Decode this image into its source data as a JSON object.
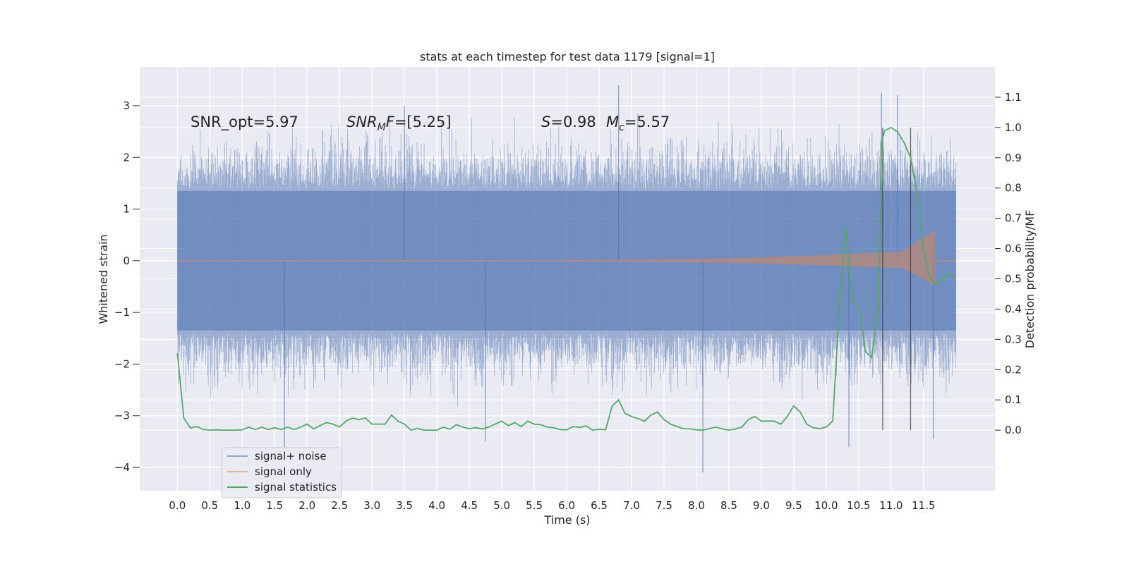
{
  "chart_data": {
    "type": "line",
    "title": "stats at each timestep for test data 1179 [signal=1]",
    "xlabel": "Time (s)",
    "ylabel_left": "Whitened strain",
    "ylabel_right": "Detection probability/MF",
    "x_ticks": [
      "0.0",
      "0.5",
      "1.0",
      "1.5",
      "2.0",
      "2.5",
      "3.0",
      "3.5",
      "4.0",
      "4.5",
      "5.0",
      "5.5",
      "6.0",
      "6.5",
      "7.0",
      "7.5",
      "8.0",
      "8.5",
      "9.0",
      "9.5",
      "10.0",
      "10.5",
      "11.0",
      "11.5"
    ],
    "y_left_ticks": [
      "3",
      "2",
      "1",
      "0",
      "−1",
      "−2",
      "−3",
      "−4"
    ],
    "y_right_ticks": [
      "1.1",
      "1.0",
      "0.9",
      "0.8",
      "0.7",
      "0.6",
      "0.5",
      "0.4",
      "0.3",
      "0.2",
      "0.1",
      "0.0"
    ],
    "xlim": [
      -0.58,
      12.6
    ],
    "ylim_left": [
      -4.45,
      3.75
    ],
    "ylim_right": [
      -0.2,
      1.2
    ],
    "grid": true,
    "legend_position": "lower-left",
    "annotations": {
      "snr_opt": "SNR_opt=5.97",
      "snr_mf_sym": "SNR",
      "snr_mf_sub": "M",
      "snr_mf_sym2": "F",
      "snr_mf_val": "=[5.25]",
      "s_sym": "S",
      "s_val": "=0.98",
      "mc_sym": "M",
      "mc_sub": "c",
      "mc_val": "=5.57"
    },
    "series": [
      {
        "name": "signal+ noise",
        "color": "#4c72b0",
        "envelope": {
          "note_hidden": false,
          "t_start": 0.0,
          "t_end": 12.0,
          "spikes": [
            {
              "t": 1.65,
              "y": -3.6
            },
            {
              "t": 6.8,
              "y": 3.4
            },
            {
              "t": 8.1,
              "y": -4.1
            },
            {
              "t": 10.35,
              "y": -3.6
            },
            {
              "t": 11.65,
              "y": -3.45
            },
            {
              "t": 11.1,
              "y": 3.2
            },
            {
              "t": 10.85,
              "y": 3.25
            },
            {
              "t": 4.75,
              "y": -3.5
            },
            {
              "t": 3.5,
              "y": 3.0
            }
          ]
        }
      },
      {
        "name": "signal only",
        "color": "#dd8452",
        "chirp": {
          "t_start": 6.0,
          "t_end": 11.68,
          "peak_amp": 0.6
        }
      },
      {
        "name": "signal statistics",
        "color": "#55a868",
        "axis": "right",
        "x": [
          0.0,
          0.1,
          0.2,
          0.3,
          0.4,
          0.5,
          0.6,
          0.7,
          0.8,
          0.9,
          1.0,
          1.1,
          1.2,
          1.3,
          1.4,
          1.5,
          1.6,
          1.7,
          1.8,
          1.9,
          2.0,
          2.1,
          2.2,
          2.3,
          2.4,
          2.5,
          2.6,
          2.7,
          2.8,
          2.9,
          3.0,
          3.1,
          3.2,
          3.3,
          3.4,
          3.5,
          3.6,
          3.7,
          3.8,
          3.9,
          4.0,
          4.1,
          4.2,
          4.3,
          4.4,
          4.5,
          4.6,
          4.7,
          4.8,
          4.9,
          5.0,
          5.1,
          5.2,
          5.3,
          5.4,
          5.5,
          5.6,
          5.7,
          5.8,
          5.9,
          6.0,
          6.1,
          6.2,
          6.3,
          6.4,
          6.5,
          6.6,
          6.7,
          6.8,
          6.9,
          7.0,
          7.1,
          7.2,
          7.3,
          7.4,
          7.5,
          7.6,
          7.7,
          7.8,
          7.9,
          8.0,
          8.1,
          8.2,
          8.3,
          8.4,
          8.5,
          8.6,
          8.7,
          8.8,
          8.9,
          9.0,
          9.1,
          9.2,
          9.3,
          9.4,
          9.5,
          9.6,
          9.7,
          9.8,
          9.9,
          10.0,
          10.1,
          10.2,
          10.3,
          10.4,
          10.5,
          10.55,
          10.6,
          10.7,
          10.8,
          10.85,
          10.9,
          11.0,
          11.1,
          11.2,
          11.3,
          11.4,
          11.5,
          11.6,
          11.7,
          11.8,
          11.9,
          11.98
        ],
        "values": [
          0.255,
          0.04,
          0.007,
          0.012,
          0.002,
          0.0,
          0.001,
          0.0,
          0.0,
          0.0,
          0.001,
          0.01,
          0.002,
          0.01,
          0.002,
          0.008,
          0.002,
          0.01,
          0.002,
          0.01,
          0.02,
          0.004,
          0.015,
          0.025,
          0.02,
          0.01,
          0.03,
          0.04,
          0.035,
          0.04,
          0.02,
          0.02,
          0.02,
          0.05,
          0.03,
          0.02,
          0.0,
          0.006,
          0.0,
          0.0,
          0.0,
          0.01,
          0.003,
          0.018,
          0.01,
          0.005,
          0.008,
          0.004,
          0.01,
          0.02,
          0.03,
          0.015,
          0.025,
          0.012,
          0.03,
          0.02,
          0.018,
          0.01,
          0.008,
          0.002,
          0.001,
          0.012,
          0.009,
          0.014,
          0.0,
          0.003,
          0.001,
          0.08,
          0.1,
          0.055,
          0.045,
          0.038,
          0.03,
          0.05,
          0.06,
          0.035,
          0.02,
          0.012,
          0.005,
          0.004,
          0.001,
          0.0,
          0.005,
          0.01,
          0.004,
          0.0,
          0.004,
          0.01,
          0.035,
          0.045,
          0.03,
          0.03,
          0.03,
          0.02,
          0.045,
          0.08,
          0.06,
          0.02,
          0.008,
          0.005,
          0.01,
          0.03,
          0.4,
          0.67,
          0.43,
          0.405,
          0.35,
          0.26,
          0.24,
          0.4,
          0.95,
          0.99,
          1.0,
          0.985,
          0.95,
          0.9,
          0.78,
          0.6,
          0.5,
          0.48,
          0.5,
          0.52,
          0.5
        ]
      }
    ],
    "vlines": [
      10.87,
      11.3
    ]
  }
}
